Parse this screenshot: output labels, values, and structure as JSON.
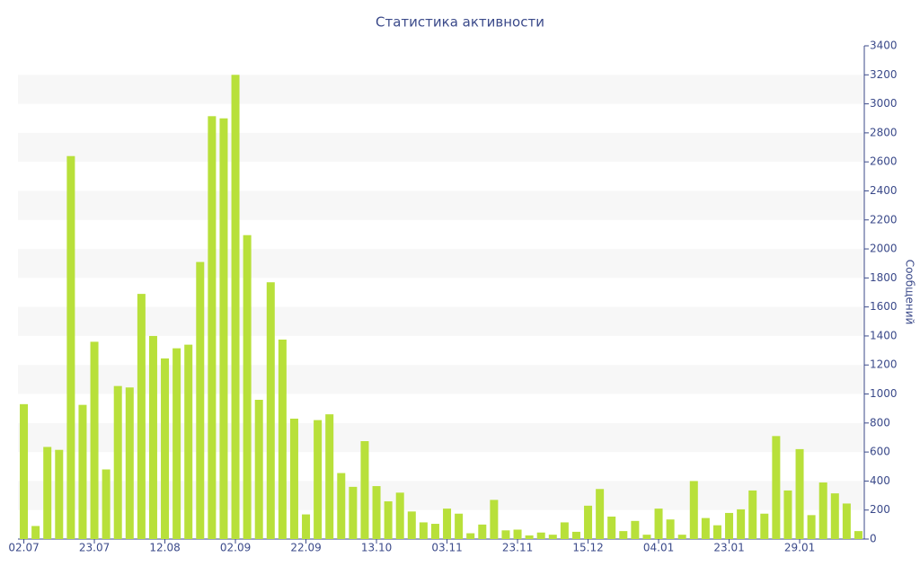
{
  "chart_data": {
    "type": "bar",
    "title": "Статистика активности",
    "y_axis_label": "Сообщений",
    "categories": [
      "02.07",
      null,
      null,
      null,
      null,
      null,
      "23.07",
      null,
      null,
      null,
      null,
      null,
      "12.08",
      null,
      null,
      null,
      null,
      null,
      "02.09",
      null,
      null,
      null,
      null,
      null,
      "22.09",
      null,
      null,
      null,
      null,
      null,
      "13.10",
      null,
      null,
      null,
      null,
      null,
      "03.11",
      null,
      null,
      null,
      null,
      null,
      "23.11",
      null,
      null,
      null,
      null,
      null,
      "15.12",
      null,
      null,
      null,
      null,
      null,
      "04.01",
      null,
      null,
      null,
      null,
      null,
      "23.01",
      null,
      null,
      null,
      null,
      null,
      "29.01",
      null,
      null,
      null,
      null,
      null
    ],
    "values": [
      930,
      90,
      635,
      615,
      2640,
      925,
      1360,
      480,
      1055,
      1045,
      1690,
      1400,
      1245,
      1315,
      1340,
      1910,
      2915,
      2900,
      3200,
      2095,
      960,
      1770,
      1375,
      830,
      170,
      820,
      860,
      455,
      360,
      675,
      365,
      260,
      320,
      190,
      115,
      105,
      210,
      175,
      40,
      100,
      270,
      60,
      65,
      25,
      45,
      30,
      115,
      50,
      230,
      345,
      155,
      55,
      125,
      30,
      210,
      135,
      30,
      400,
      145,
      95,
      180,
      205,
      335,
      175,
      710,
      335,
      620,
      165,
      390,
      315,
      245,
      55
    ],
    "color": "#b8e03a",
    "ylim": [
      0,
      3400
    ],
    "yticks": [
      0,
      200,
      400,
      600,
      800,
      1000,
      1200,
      1400,
      1600,
      1800,
      2000,
      2200,
      2400,
      2600,
      2800,
      3000,
      3200,
      3400
    ],
    "grid": true,
    "y_axis_side": "right"
  }
}
